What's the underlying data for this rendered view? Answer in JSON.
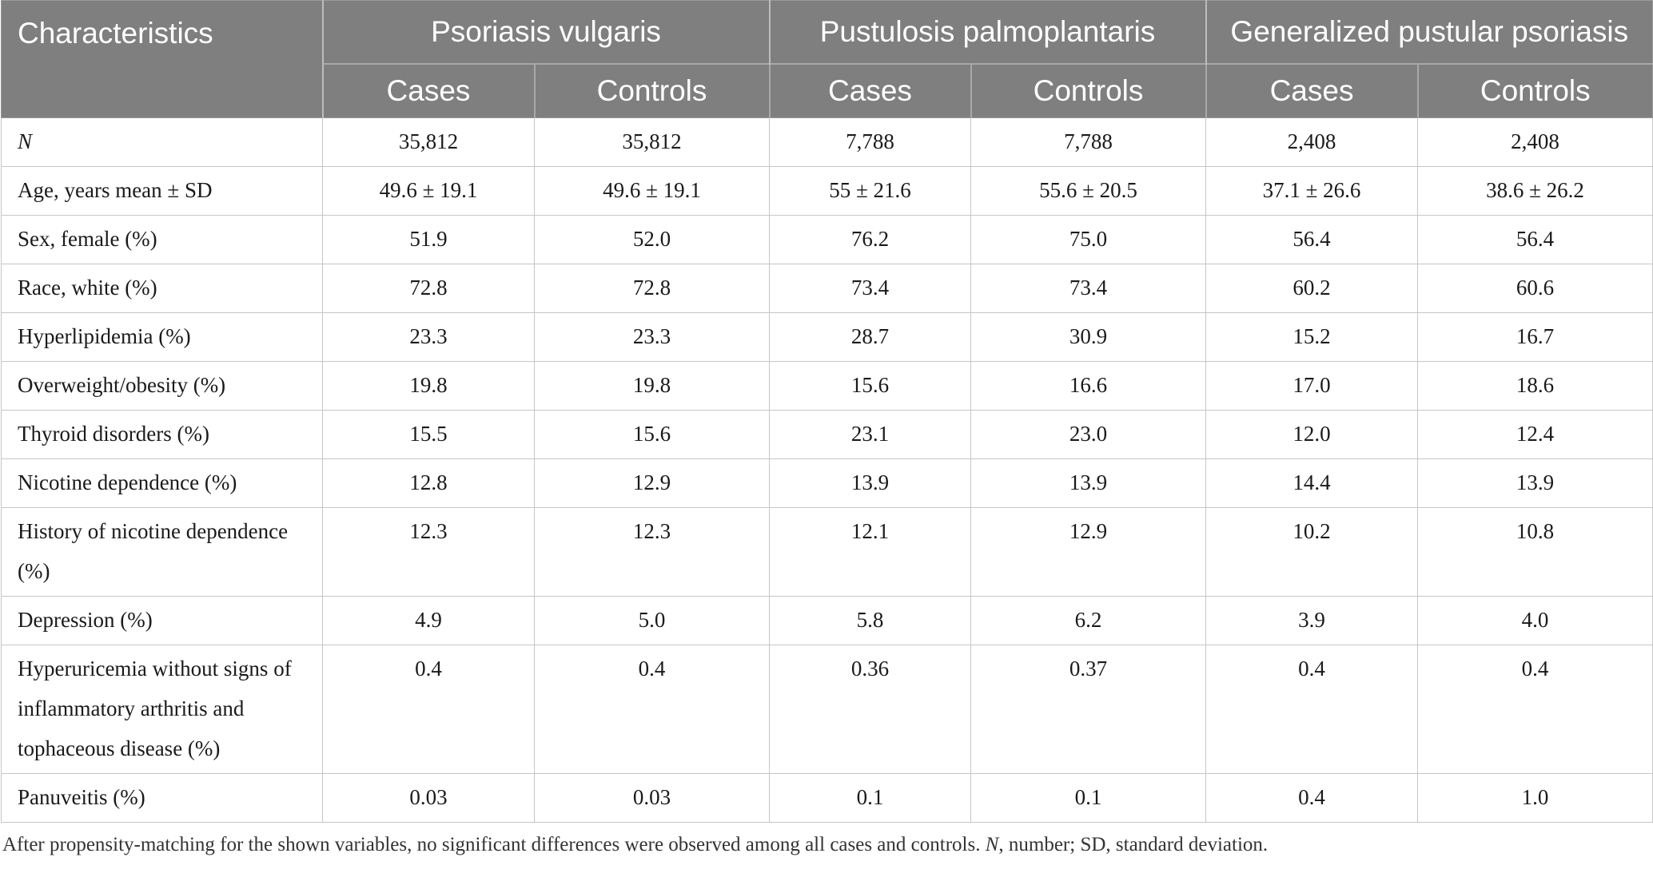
{
  "header": {
    "characteristics": "Characteristics",
    "groups": [
      "Psoriasis vulgaris",
      "Pustulosis palmoplantaris",
      "Generalized pustular psoriasis"
    ],
    "subcolumns": [
      "Cases",
      "Controls",
      "Cases",
      "Controls",
      "Cases",
      "Controls"
    ]
  },
  "rows": [
    {
      "label": "N",
      "values": [
        "35,812",
        "35,812",
        "7,788",
        "7,788",
        "2,408",
        "2,408"
      ]
    },
    {
      "label": "Age, years mean ± SD",
      "values": [
        "49.6 ± 19.1",
        "49.6 ± 19.1",
        "55 ± 21.6",
        "55.6 ± 20.5",
        "37.1 ± 26.6",
        "38.6 ± 26.2"
      ]
    },
    {
      "label": "Sex, female (%)",
      "values": [
        "51.9",
        "52.0",
        "76.2",
        "75.0",
        "56.4",
        "56.4"
      ]
    },
    {
      "label": "Race, white (%)",
      "values": [
        "72.8",
        "72.8",
        "73.4",
        "73.4",
        "60.2",
        "60.6"
      ]
    },
    {
      "label": "Hyperlipidemia (%)",
      "values": [
        "23.3",
        "23.3",
        "28.7",
        "30.9",
        "15.2",
        "16.7"
      ]
    },
    {
      "label": "Overweight/obesity (%)",
      "values": [
        "19.8",
        "19.8",
        "15.6",
        "16.6",
        "17.0",
        "18.6"
      ]
    },
    {
      "label": "Thyroid disorders (%)",
      "values": [
        "15.5",
        "15.6",
        "23.1",
        "23.0",
        "12.0",
        "12.4"
      ]
    },
    {
      "label": "Nicotine dependence (%)",
      "values": [
        "12.8",
        "12.9",
        "13.9",
        "13.9",
        "14.4",
        "13.9"
      ]
    },
    {
      "label": "History of nicotine dependence (%)",
      "values": [
        "12.3",
        "12.3",
        "12.1",
        "12.9",
        "10.2",
        "10.8"
      ]
    },
    {
      "label": "Depression (%)",
      "values": [
        "4.9",
        "5.0",
        "5.8",
        "6.2",
        "3.9",
        "4.0"
      ]
    },
    {
      "label": "Hyperuricemia without signs of inflammatory arthritis and tophaceous disease (%)",
      "values": [
        "0.4",
        "0.4",
        "0.36",
        "0.37",
        "0.4",
        "0.4"
      ]
    },
    {
      "label": "Panuveitis (%)",
      "values": [
        "0.03",
        "0.03",
        "0.1",
        "0.1",
        "0.4",
        "1.0"
      ]
    }
  ],
  "footnote": {
    "part1": "After propensity-matching for the shown variables, no significant differences were observed among all cases and controls. ",
    "n_symbol": "N",
    "part2": ", number; SD, standard deviation."
  }
}
